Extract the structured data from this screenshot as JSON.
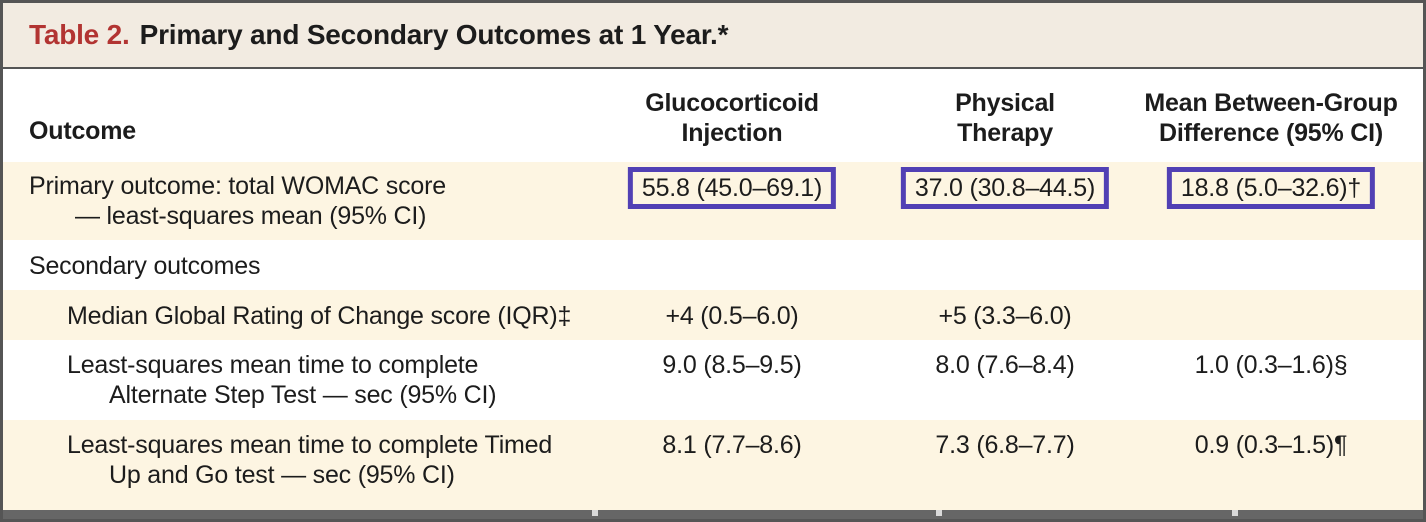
{
  "title": {
    "label": "Table 2.",
    "text": "Primary and Secondary Outcomes at 1 Year.*"
  },
  "header": {
    "outcome": "Outcome",
    "columns": [
      {
        "line1": "Glucocorticoid",
        "line2": "Injection"
      },
      {
        "line1": "Physical",
        "line2": "Therapy"
      },
      {
        "line1": "Mean Between-Group",
        "line2": "Difference (95% CI)"
      }
    ]
  },
  "rows": [
    {
      "label_line1": "Primary outcome: total WOMAC score",
      "label_line2": "— least-squares mean (95% CI)",
      "glucocorticoid": "55.8 (45.0–69.1)",
      "physical_therapy": "37.0 (30.8–44.5)",
      "difference": "18.8 (5.0–32.6)†",
      "highlighted": true,
      "shaded": true
    },
    {
      "label_line1": "Secondary outcomes",
      "section_header": true,
      "shaded": false
    },
    {
      "label_line1": "Median Global Rating of Change score (IQR)‡",
      "glucocorticoid": "+4 (0.5–6.0)",
      "physical_therapy": "+5 (3.3–6.0)",
      "difference": "",
      "shaded": true
    },
    {
      "label_line1": "Least-squares mean time to complete",
      "label_line2": "Alternate Step Test — sec (95% CI)",
      "glucocorticoid": "9.0 (8.5–9.5)",
      "physical_therapy": "8.0 (7.6–8.4)",
      "difference": "1.0 (0.3–1.6)§",
      "shaded": false
    },
    {
      "label_line1": "Least-squares mean time to complete Timed",
      "label_line2": "Up and Go test — sec (95% CI)",
      "glucocorticoid": "8.1 (7.7–8.6)",
      "physical_therapy": "7.3 (6.8–7.7)",
      "difference": "0.9 (0.3–1.5)¶",
      "shaded": true
    }
  ],
  "colors": {
    "highlight_box_border": "#5140b4",
    "title_red": "#b23432",
    "shaded_row_bg": "#fdf5e2",
    "title_bar_bg": "#f2ebe1",
    "frame_border": "#555555"
  },
  "chart_data": {
    "type": "table",
    "title": "Table 2. Primary and Secondary Outcomes at 1 Year.*",
    "columns": [
      "Outcome",
      "Glucocorticoid Injection",
      "Physical Therapy",
      "Mean Between-Group Difference (95% CI)"
    ],
    "rows": [
      [
        "Primary outcome: total WOMAC score — least-squares mean (95% CI)",
        "55.8 (45.0–69.1)",
        "37.0 (30.8–44.5)",
        "18.8 (5.0–32.6)†"
      ],
      [
        "Secondary outcomes",
        "",
        "",
        ""
      ],
      [
        "Median Global Rating of Change score (IQR)‡",
        "+4 (0.5–6.0)",
        "+5 (3.3–6.0)",
        ""
      ],
      [
        "Least-squares mean time to complete Alternate Step Test — sec (95% CI)",
        "9.0 (8.5–9.5)",
        "8.0 (7.6–8.4)",
        "1.0 (0.3–1.6)§"
      ],
      [
        "Least-squares mean time to complete Timed Up and Go test — sec (95% CI)",
        "8.1 (7.7–8.6)",
        "7.3 (6.8–7.7)",
        "0.9 (0.3–1.5)¶"
      ]
    ]
  }
}
